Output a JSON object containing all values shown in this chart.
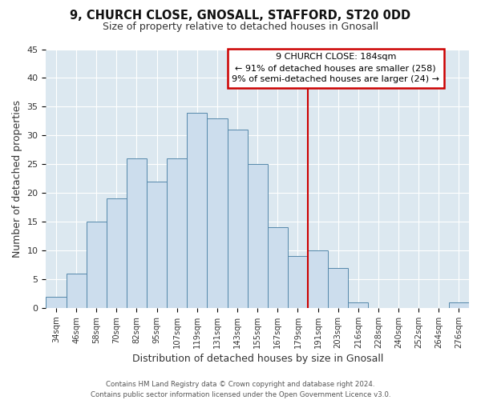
{
  "title": "9, CHURCH CLOSE, GNOSALL, STAFFORD, ST20 0DD",
  "subtitle": "Size of property relative to detached houses in Gnosall",
  "xlabel": "Distribution of detached houses by size in Gnosall",
  "ylabel": "Number of detached properties",
  "footer_lines": [
    "Contains HM Land Registry data © Crown copyright and database right 2024.",
    "Contains public sector information licensed under the Open Government Licence v3.0."
  ],
  "categories": [
    "34sqm",
    "46sqm",
    "58sqm",
    "70sqm",
    "82sqm",
    "95sqm",
    "107sqm",
    "119sqm",
    "131sqm",
    "143sqm",
    "155sqm",
    "167sqm",
    "179sqm",
    "191sqm",
    "203sqm",
    "216sqm",
    "228sqm",
    "240sqm",
    "252sqm",
    "264sqm",
    "276sqm"
  ],
  "values": [
    2,
    6,
    15,
    19,
    26,
    22,
    26,
    34,
    33,
    31,
    25,
    14,
    9,
    10,
    7,
    1,
    0,
    0,
    0,
    0,
    1
  ],
  "bar_color": "#ccdded",
  "bar_edge_color": "#5588aa",
  "vline_x": 13.0,
  "vline_color": "#cc0000",
  "ylim": [
    0,
    45
  ],
  "yticks": [
    0,
    5,
    10,
    15,
    20,
    25,
    30,
    35,
    40,
    45
  ],
  "annotation_title": "9 CHURCH CLOSE: 184sqm",
  "annotation_line1": "← 91% of detached houses are smaller (258)",
  "annotation_line2": "9% of semi-detached houses are larger (24) →",
  "plot_bg_color": "#dce8f0",
  "fig_bg_color": "#ffffff",
  "grid_color": "#ffffff"
}
